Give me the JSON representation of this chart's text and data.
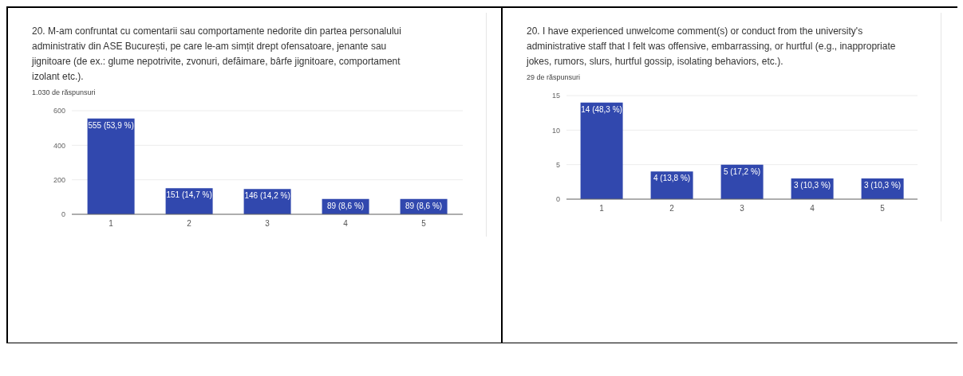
{
  "chart_data": [
    {
      "type": "bar",
      "title": "20. M-am confruntat cu comentarii sau comportamente nedorite din partea personalului administrativ din ASE București, pe care le-am simțit drept ofensatoare, jenante sau jignitoare (de ex.: glume nepotrivite, zvonuri, defăimare, bârfe jignitoare, comportament izolant etc.).",
      "subtitle": "1.030 de răspunsuri",
      "categories": [
        "1",
        "2",
        "3",
        "4",
        "5"
      ],
      "values": [
        555,
        151,
        146,
        89,
        89
      ],
      "value_labels": [
        "555 (53,9 %)",
        "151 (14,7 %)",
        "146 (14,2 %)",
        "89 (8,6 %)",
        "89 (8,6 %)"
      ],
      "color": "#3148ae",
      "ylim": [
        0,
        600
      ],
      "yticks": [
        0,
        200,
        400,
        600
      ],
      "grid": "y"
    },
    {
      "type": "bar",
      "title": "20. I have experienced unwelcome comment(s) or conduct from the university's administrative staff that I felt was offensive, embarrassing, or hurtful (e.g., inappropriate jokes, rumors, slurs, hurtful gossip, isolating behaviors, etc.).",
      "subtitle": "29 de răspunsuri",
      "categories": [
        "1",
        "2",
        "3",
        "4",
        "5"
      ],
      "values": [
        14,
        4,
        5,
        3,
        3
      ],
      "value_labels": [
        "14 (48,3 %)",
        "4 (13,8 %)",
        "5 (17,2 %)",
        "3 (10,3 %)",
        "3 (10,3 %)"
      ],
      "color": "#3148ae",
      "ylim": [
        0,
        15
      ],
      "yticks": [
        0,
        5,
        10,
        15
      ],
      "grid": "y"
    }
  ]
}
